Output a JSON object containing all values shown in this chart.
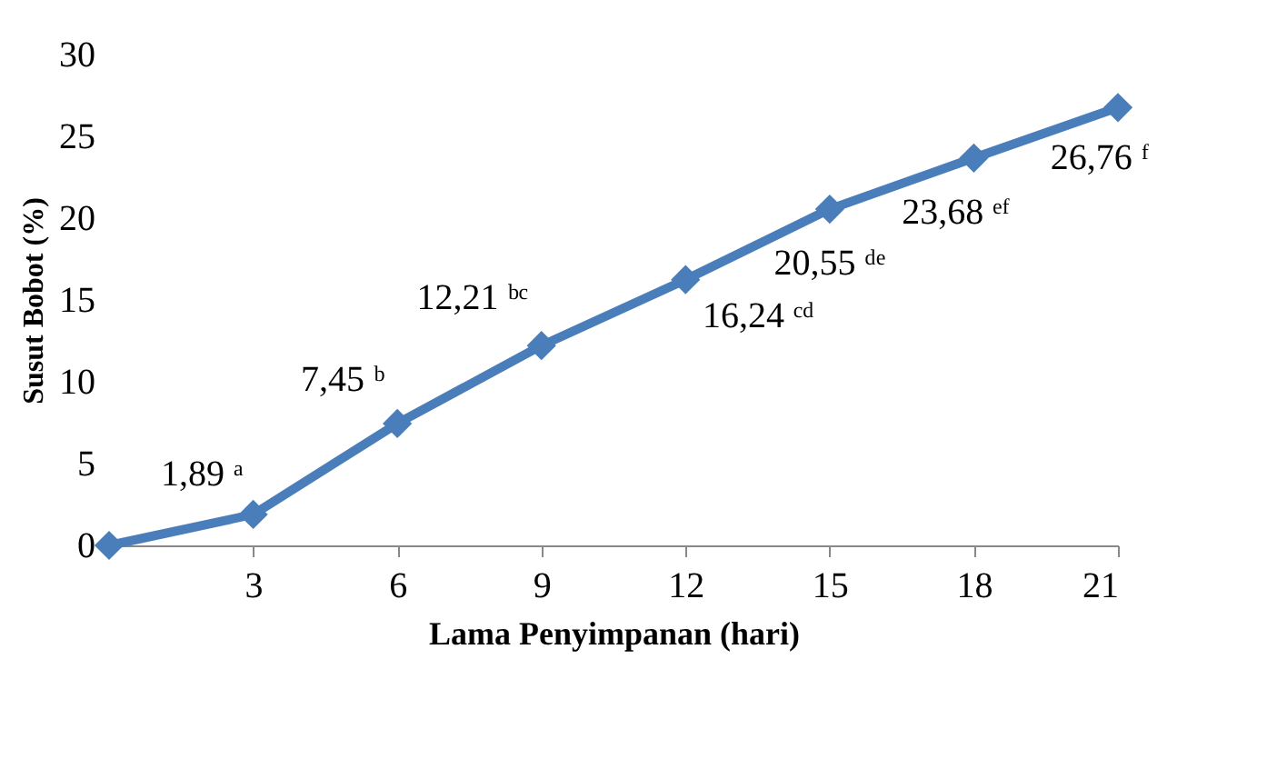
{
  "chart_data": {
    "type": "line",
    "xlabel": "Lama Penyimpanan (hari)",
    "ylabel": "Susut Bobot (%)",
    "x": [
      0,
      3,
      6,
      9,
      12,
      15,
      18,
      21
    ],
    "series": [
      {
        "color": "#4a7ebb",
        "values": [
          0,
          1.89,
          7.45,
          12.21,
          16.24,
          20.55,
          23.68,
          26.76
        ]
      }
    ],
    "value_labels": [
      null,
      "1,89 ᵃ",
      "7,45 ᵇ",
      "12,21 ᵇᶜ",
      "16,24 ᶜᵈ",
      "20,55 ᵈᵉ",
      "23,68 ᵉᶠ",
      "26,76 ᶠ"
    ],
    "xlim": [
      0,
      21
    ],
    "xticks": [
      3,
      6,
      9,
      12,
      15,
      18,
      21
    ],
    "ylim": [
      0,
      30
    ],
    "yticks": [
      0,
      5,
      10,
      15,
      20,
      25,
      30
    ],
    "grid": false,
    "marker": "diamond",
    "line_style": "solid"
  }
}
